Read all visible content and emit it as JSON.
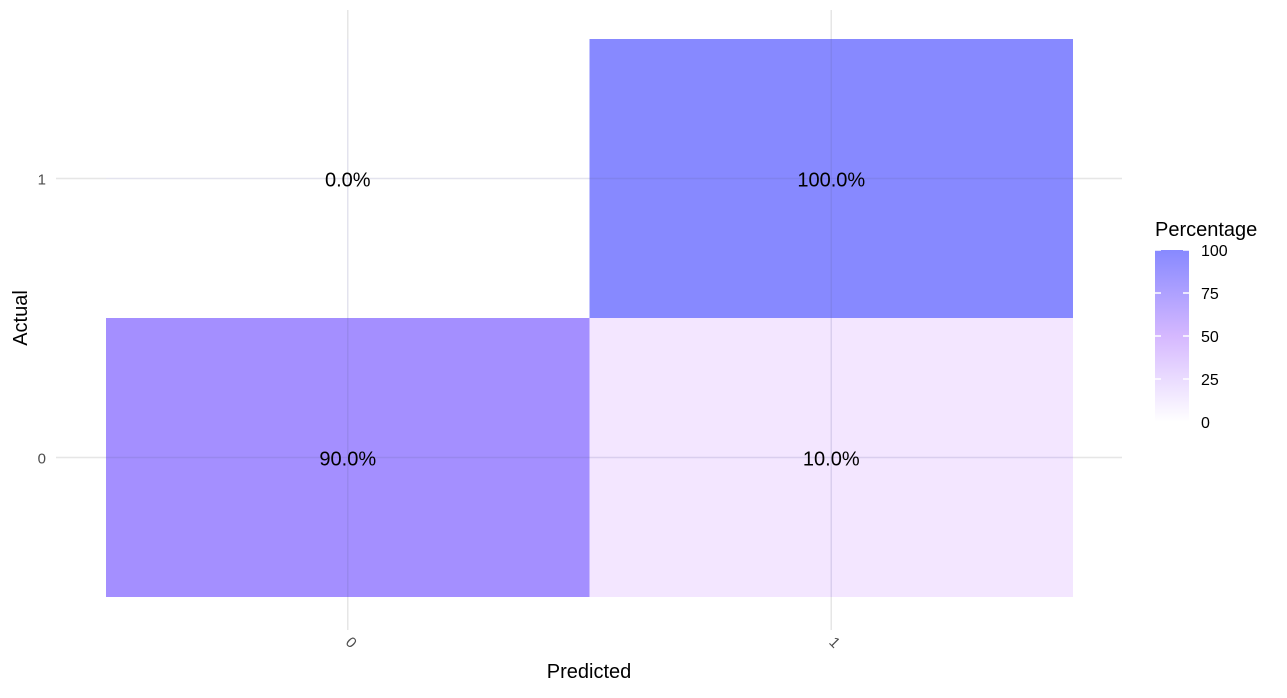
{
  "chart_data": {
    "type": "heatmap",
    "x_categories": [
      "0",
      "1"
    ],
    "y_categories": [
      "0",
      "1"
    ],
    "xlabel": "Predicted",
    "ylabel": "Actual",
    "cells": [
      {
        "x": "0",
        "y": "1",
        "value": 0.0,
        "label": "0.0%"
      },
      {
        "x": "1",
        "y": "1",
        "value": 100.0,
        "label": "100.0%"
      },
      {
        "x": "0",
        "y": "0",
        "value": 90.0,
        "label": "90.0%"
      },
      {
        "x": "1",
        "y": "0",
        "value": 10.0,
        "label": "10.0%"
      }
    ],
    "legend": {
      "title": "Percentage",
      "position": "right",
      "min": 0,
      "max": 100,
      "ticks": [
        0,
        25,
        50,
        75,
        100
      ],
      "low_color": "#ffffff",
      "high_color": "#8789ff"
    },
    "cell_colors": {
      "0": "#ffffff",
      "10": "#f3e6ff",
      "90": "#a48fff",
      "100": "#8789ff"
    },
    "grid": true
  }
}
